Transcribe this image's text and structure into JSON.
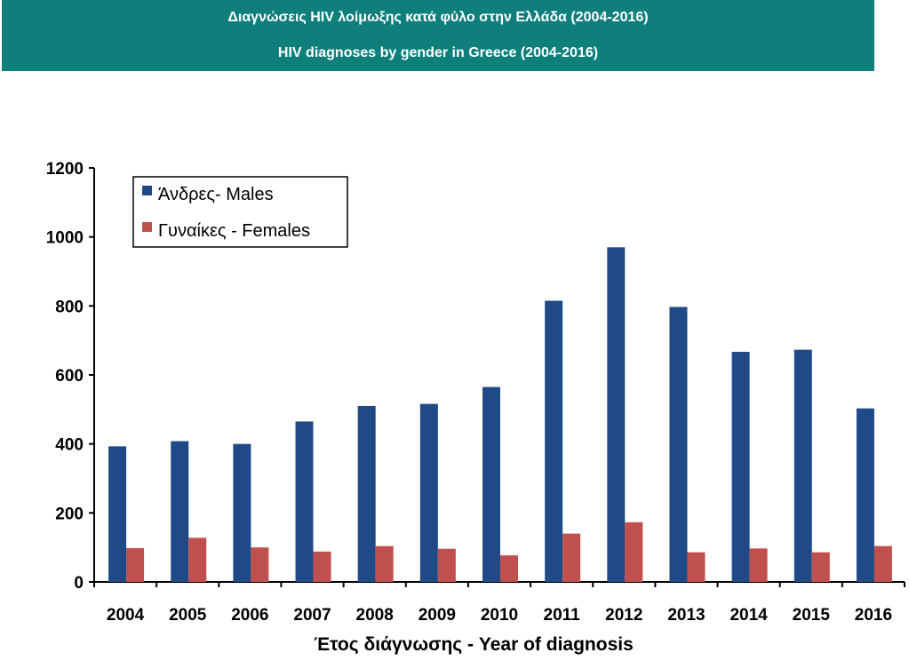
{
  "header": {
    "title_greek": "Διαγνώσεις HIV λοίμωξης κατά φύλο στην Ελλάδα (2004-2016)",
    "title_english": "HIV diagnoses by gender in Greece (2004-2016)",
    "background_color": "#0f7f7c"
  },
  "chart_data": {
    "type": "bar",
    "title": "",
    "xlabel": "Έτος διάγνωσης - Year of diagnosis",
    "ylabel": "",
    "categories": [
      "2004",
      "2005",
      "2006",
      "2007",
      "2008",
      "2009",
      "2010",
      "2011",
      "2012",
      "2013",
      "2014",
      "2015",
      "2016"
    ],
    "ylim": [
      0,
      1200
    ],
    "yticks": [
      0,
      200,
      400,
      600,
      800,
      1000,
      1200
    ],
    "grid": false,
    "legend_position": "top-left",
    "series": [
      {
        "name": "Άνδρες- Males",
        "color": "#1f4a86",
        "values": [
          393,
          408,
          400,
          465,
          510,
          516,
          565,
          815,
          970,
          797,
          667,
          673,
          503
        ]
      },
      {
        "name": "Γυναίκες - Females",
        "color": "#c0504d",
        "values": [
          98,
          128,
          100,
          88,
          104,
          96,
          77,
          140,
          173,
          86,
          97,
          86,
          104
        ]
      }
    ]
  }
}
